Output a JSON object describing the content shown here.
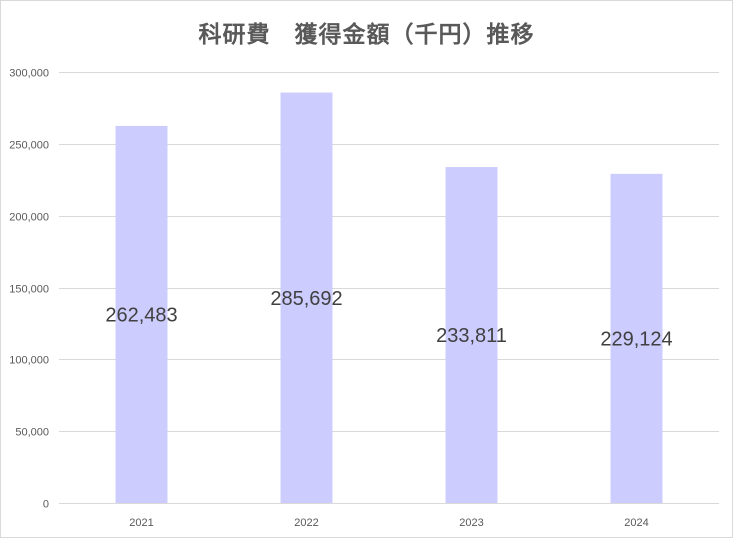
{
  "chart_data": {
    "type": "bar",
    "title": "科研費　獲得金額（千円）推移",
    "categories": [
      "2021",
      "2022",
      "2023",
      "2024"
    ],
    "series": [
      {
        "values": [
          262483,
          285692,
          233811,
          229124
        ],
        "data_labels": [
          "262,483",
          "285,692",
          "233,811",
          "229,124"
        ],
        "color": "#ccccff"
      }
    ],
    "y_ticks": [
      "0",
      "50,000",
      "100,000",
      "150,000",
      "200,000",
      "250,000",
      "300,000"
    ],
    "y_tick_values": [
      0,
      50000,
      100000,
      150000,
      200000,
      250000,
      300000
    ],
    "ylim": [
      0,
      300000
    ],
    "xlabel": "",
    "ylabel": "",
    "grid": true,
    "legend": "none",
    "gridline_color": "#d9d9d9",
    "label_color": "#404040",
    "tick_color": "#595959"
  }
}
